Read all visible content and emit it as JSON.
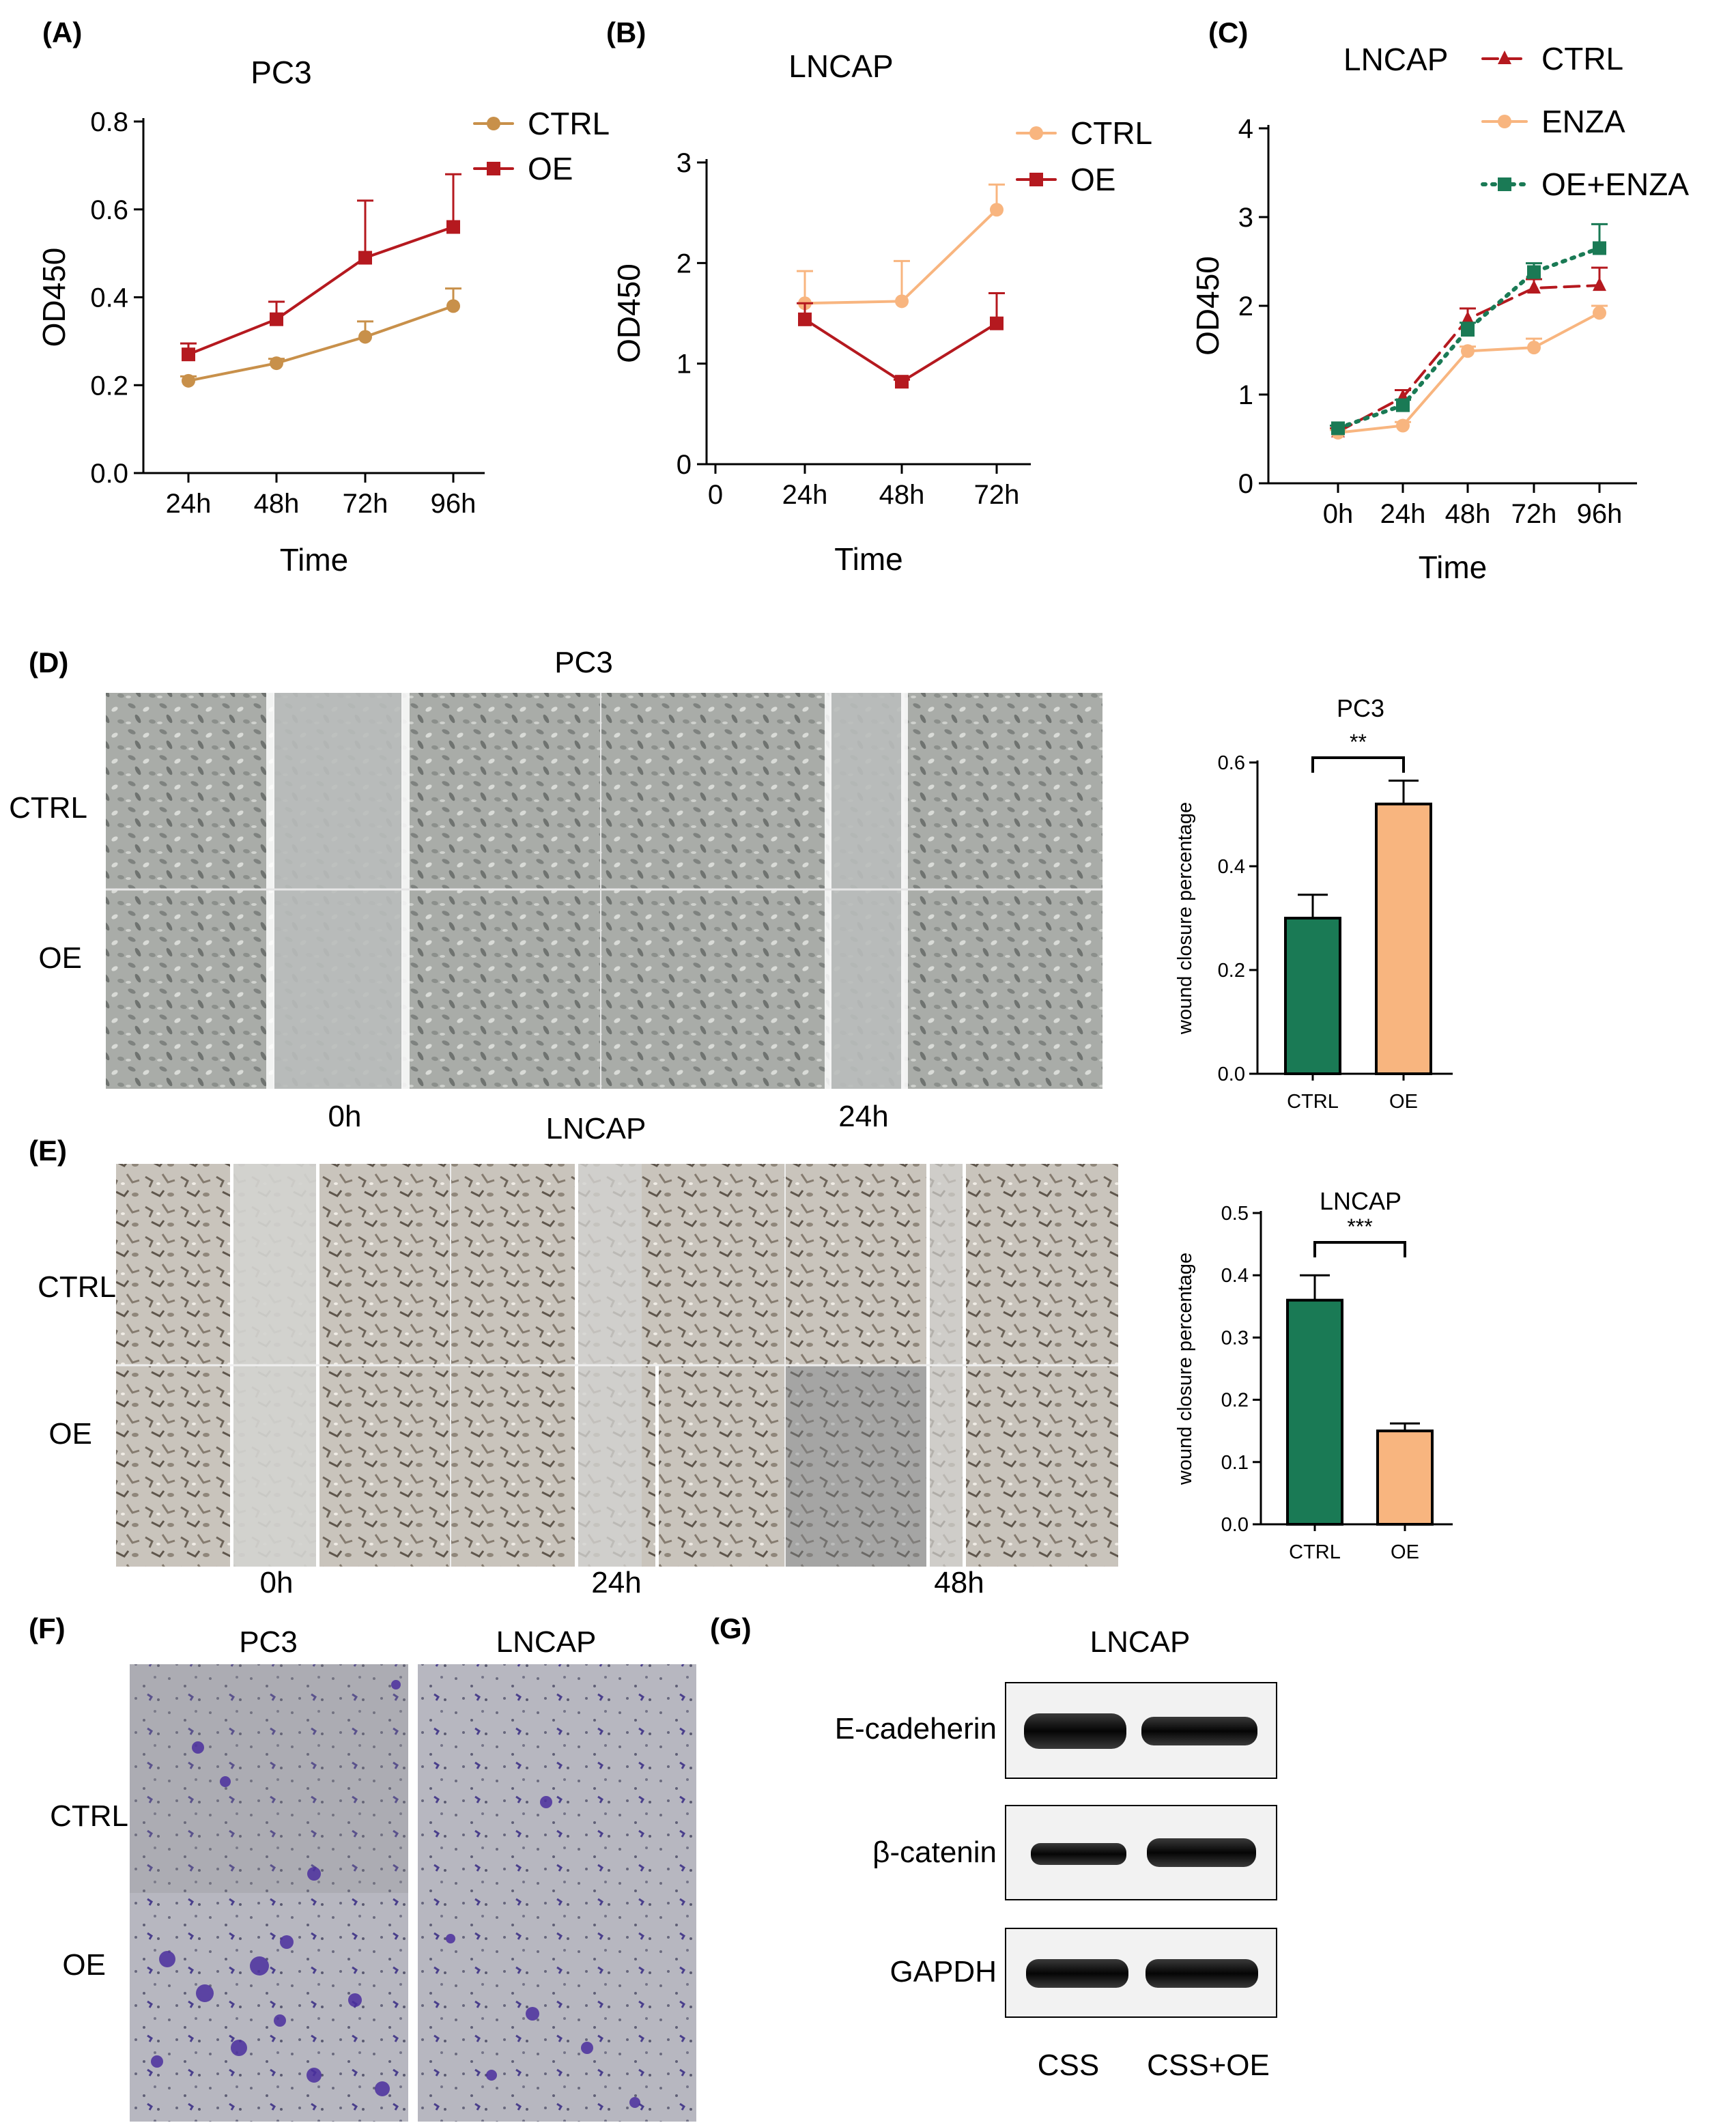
{
  "panels": {
    "A": {
      "label": "(A)"
    },
    "B": {
      "label": "(B)"
    },
    "C": {
      "label": "(C)"
    },
    "D": {
      "label": "(D)",
      "title": "PC3",
      "row_labels": [
        "CTRL",
        "OE"
      ],
      "time_labels": [
        "0h",
        "24h"
      ]
    },
    "E": {
      "label": "(E)",
      "title": "LNCAP",
      "row_labels": [
        "CTRL",
        "OE"
      ],
      "time_labels": [
        "0h",
        "24h",
        "48h"
      ]
    },
    "F": {
      "label": "(F)",
      "col_labels": [
        "PC3",
        "LNCAP"
      ],
      "row_labels": [
        "CTRL",
        "OE"
      ]
    },
    "G": {
      "label": "(G)",
      "title": "LNCAP",
      "bands": [
        "E-cadeherin",
        "β-catenin",
        "GAPDH"
      ],
      "lanes": [
        "CSS",
        "CSS+OE"
      ]
    }
  },
  "chart_data": [
    {
      "id": "A",
      "type": "line",
      "title": "PC3",
      "xlabel": "Time",
      "ylabel": "OD450",
      "categories": [
        "24h",
        "48h",
        "72h",
        "96h"
      ],
      "ylim": [
        0.0,
        0.8
      ],
      "yticks": [
        "0.0",
        "0.2",
        "0.4",
        "0.6",
        "0.8"
      ],
      "series": [
        {
          "name": "CTRL",
          "color": "#c8904a",
          "marker": "circle",
          "values": [
            0.21,
            0.25,
            0.31,
            0.38
          ],
          "errors": [
            0.01,
            0.01,
            0.035,
            0.04
          ]
        },
        {
          "name": "OE",
          "color": "#b5191f",
          "marker": "square",
          "values": [
            0.27,
            0.35,
            0.49,
            0.56
          ],
          "errors": [
            0.025,
            0.04,
            0.13,
            0.12
          ]
        }
      ]
    },
    {
      "id": "B",
      "type": "line",
      "title": "LNCAP",
      "xlabel": "Time",
      "ylabel": "OD450",
      "categories": [
        "0",
        "24h",
        "48h",
        "72h"
      ],
      "ylim": [
        0,
        3
      ],
      "yticks": [
        "0",
        "1",
        "2",
        "3"
      ],
      "series": [
        {
          "name": "CTRL",
          "color": "#f8b57f",
          "marker": "circle",
          "values": [
            null,
            1.6,
            1.62,
            2.53
          ],
          "errors": [
            null,
            0.32,
            0.4,
            0.25
          ]
        },
        {
          "name": "OE",
          "color": "#b5191f",
          "marker": "square",
          "values": [
            null,
            1.44,
            0.82,
            1.4
          ],
          "errors": [
            null,
            0.16,
            0.02,
            0.3
          ]
        }
      ]
    },
    {
      "id": "C",
      "type": "line",
      "title": "LNCAP",
      "xlabel": "Time",
      "ylabel": "OD450",
      "categories": [
        "0h",
        "24h",
        "48h",
        "72h",
        "96h"
      ],
      "ylim": [
        0,
        4
      ],
      "yticks": [
        "0",
        "1",
        "2",
        "3",
        "4"
      ],
      "series": [
        {
          "name": "CTRL",
          "color": "#b5191f",
          "marker": "triangle",
          "dash": "dashed",
          "values": [
            0.58,
            0.97,
            1.85,
            2.2,
            2.23
          ],
          "errors": [
            0.04,
            0.08,
            0.12,
            0.1,
            0.2
          ]
        },
        {
          "name": "ENZA",
          "color": "#f8b57f",
          "marker": "circle",
          "dash": "solid",
          "values": [
            0.57,
            0.65,
            1.49,
            1.53,
            1.92
          ],
          "errors": [
            0.03,
            0.04,
            0.05,
            0.1,
            0.08
          ]
        },
        {
          "name": "OE+ENZA",
          "color": "#1a7a55",
          "marker": "square",
          "dash": "dotted",
          "values": [
            0.62,
            0.88,
            1.73,
            2.38,
            2.65
          ],
          "errors": [
            0.03,
            0.06,
            0.08,
            0.1,
            0.27
          ]
        }
      ]
    },
    {
      "id": "D-bar",
      "type": "bar",
      "title": "PC3",
      "ylabel": "wound closure percentage",
      "categories": [
        "CTRL",
        "OE"
      ],
      "values": [
        0.3,
        0.52
      ],
      "errors": [
        0.045,
        0.045
      ],
      "colors": [
        "#1a7a55",
        "#f8b57f"
      ],
      "ylim": [
        0,
        0.6
      ],
      "yticks": [
        "0.0",
        "0.2",
        "0.4",
        "0.6"
      ],
      "significance": "**"
    },
    {
      "id": "E-bar",
      "type": "bar",
      "title": "LNCAP",
      "ylabel": "wound closure percentage",
      "categories": [
        "CTRL",
        "OE"
      ],
      "values": [
        0.36,
        0.15
      ],
      "errors": [
        0.04,
        0.012
      ],
      "colors": [
        "#1a7a55",
        "#f8b57f"
      ],
      "ylim": [
        0,
        0.5
      ],
      "yticks": [
        "0.0",
        "0.1",
        "0.2",
        "0.3",
        "0.4",
        "0.5"
      ],
      "significance": "***"
    }
  ]
}
